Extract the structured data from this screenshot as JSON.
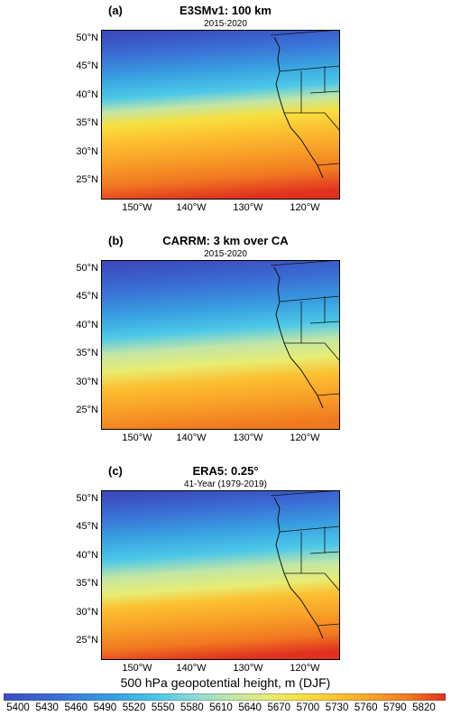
{
  "panels": [
    {
      "letter": "(a)",
      "title": "E3SMv1: 100 km",
      "subtitle": "2015-2020",
      "lat_labels": [
        "50°N",
        "45°N",
        "40°N",
        "35°N",
        "30°N",
        "25°N"
      ],
      "lon_labels": [
        "150°W",
        "140°W",
        "130°W",
        "120°W"
      ]
    },
    {
      "letter": "(b)",
      "title": "CARRM: 3 km over CA",
      "subtitle": "2015-2020",
      "lat_labels": [
        "50°N",
        "45°N",
        "40°N",
        "35°N",
        "30°N",
        "25°N"
      ],
      "lon_labels": [
        "150°W",
        "140°W",
        "130°W",
        "120°W"
      ]
    },
    {
      "letter": "(c)",
      "title": "ERA5: 0.25°",
      "subtitle": "41-Year (1979-2019)",
      "lat_labels": [
        "50°N",
        "45°N",
        "40°N",
        "35°N",
        "30°N",
        "25°N"
      ],
      "lon_labels": [
        "150°W",
        "140°W",
        "130°W",
        "120°W"
      ]
    }
  ],
  "colorbar": {
    "title": "500 hPa geopotential height, m (DJF)",
    "ticks": [
      "5400",
      "5430",
      "5460",
      "5490",
      "5520",
      "5550",
      "5580",
      "5610",
      "5640",
      "5670",
      "5700",
      "5730",
      "5760",
      "5790",
      "5820"
    ],
    "colors": [
      "#3b4cc0",
      "#3a6fd6",
      "#38a0e0",
      "#4cc8e8",
      "#8adcd8",
      "#c2e6a6",
      "#e8ec72",
      "#f8e040",
      "#fcc030",
      "#f8a028",
      "#f07820",
      "#e85020",
      "#e03020"
    ]
  }
}
